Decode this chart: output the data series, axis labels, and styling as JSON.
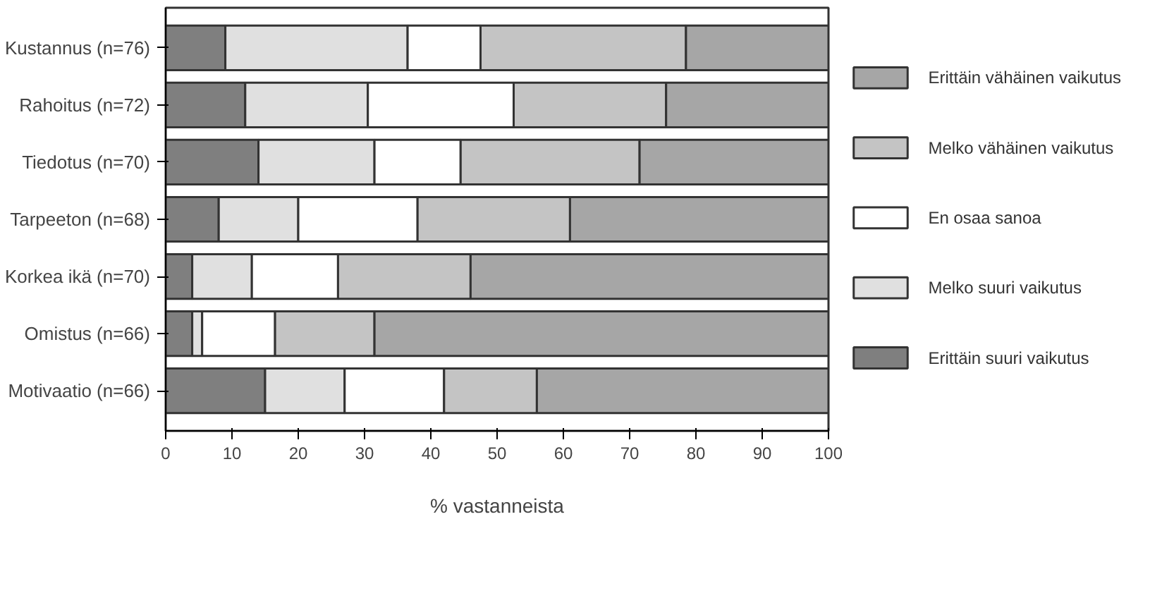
{
  "chart_data": {
    "type": "bar",
    "orientation": "horizontal",
    "stacked": true,
    "categories": [
      "Kustannus (n=76)",
      "Rahoitus (n=72)",
      "Tiedotus (n=70)",
      "Tarpeeton (n=68)",
      "Korkea ikä (n=70)",
      "Omistus (n=66)",
      "Motivaatio (n=66)"
    ],
    "series": [
      {
        "name": "Erittäin suuri vaikutus",
        "color": "#7f7f7f",
        "values": [
          9,
          12,
          14,
          8,
          4,
          4,
          15
        ]
      },
      {
        "name": "Melko suuri vaikutus",
        "color": "#e0e0e0",
        "values": [
          27.5,
          18.5,
          17.5,
          12,
          9,
          1.5,
          12
        ]
      },
      {
        "name": "En osaa sanoa",
        "color": "#ffffff",
        "values": [
          11,
          22,
          13,
          18,
          13,
          11,
          15
        ]
      },
      {
        "name": "Melko vähäinen vaikutus",
        "color": "#c4c4c4",
        "values": [
          31,
          23,
          27,
          23,
          20,
          15,
          14
        ]
      },
      {
        "name": "Erittäin vähäinen vaikutus",
        "color": "#a6a6a6",
        "values": [
          21.5,
          24.5,
          28.5,
          39,
          54,
          68.5,
          44
        ]
      }
    ],
    "xlim": [
      0,
      100
    ],
    "xticks": [
      0,
      10,
      20,
      30,
      40,
      50,
      60,
      70,
      80,
      90,
      100
    ],
    "xlabel": "% vastanneista",
    "legend": "right",
    "grid": false
  }
}
